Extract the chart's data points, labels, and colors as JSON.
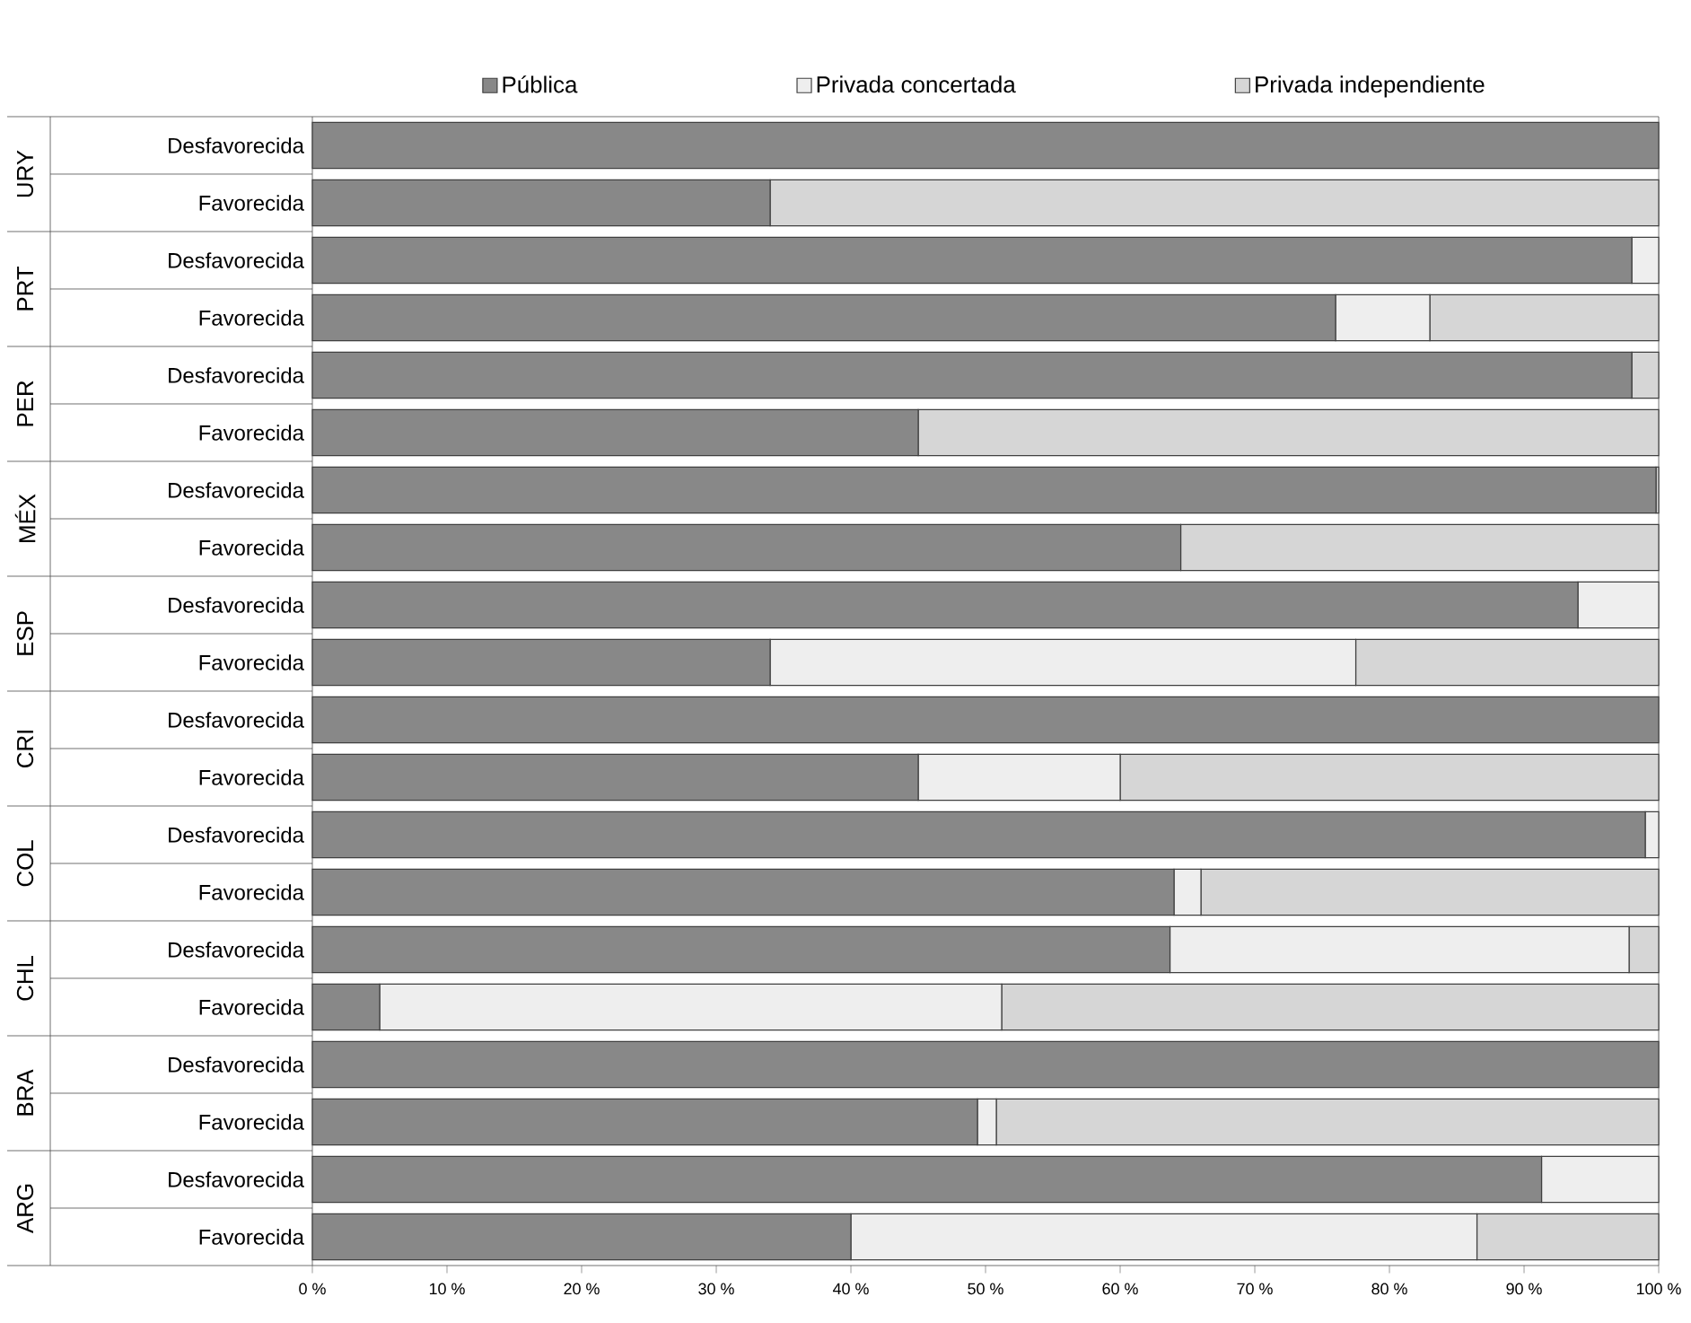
{
  "chart_data": {
    "type": "bar",
    "orientation": "horizontal",
    "stacked": true,
    "categories": [
      "Desfavorecida",
      "Favorecida",
      "Desfavorecida",
      "Favorecida",
      "Desfavorecida",
      "Favorecida",
      "Desfavorecida",
      "Favorecida",
      "Desfavorecida",
      "Favorecida",
      "Desfavorecida",
      "Favorecida",
      "Desfavorecida",
      "Favorecida",
      "Desfavorecida",
      "Favorecida",
      "Desfavorecida",
      "Favorecida",
      "Desfavorecida",
      "Favorecida"
    ],
    "series": [
      {
        "name": "Pública",
        "color": "#888888",
        "values": [
          100,
          34,
          98,
          76,
          98,
          45,
          99.8,
          64.5,
          94,
          34,
          100,
          45,
          99,
          64,
          63.7,
          5,
          100,
          49.4,
          91.3,
          40
        ]
      },
      {
        "name": "Privada concertada",
        "color": "#eeeeee",
        "values": [
          0,
          0,
          2,
          7,
          0,
          0,
          0,
          0,
          6,
          43.5,
          0,
          15,
          1,
          2,
          34.1,
          46.2,
          0,
          1.4,
          8.7,
          46.5
        ]
      },
      {
        "name": "Privada independiente",
        "color": "#d6d6d6",
        "values": [
          0,
          66,
          0,
          17,
          2,
          55,
          0.2,
          35.5,
          0,
          22.5,
          0,
          40,
          0,
          34,
          2.2,
          48.8,
          0,
          49.2,
          0,
          13.5
        ]
      }
    ],
    "xlim": [
      0,
      100
    ],
    "xticks": [
      {
        "value": 0,
        "label": "0 %"
      },
      {
        "value": 10,
        "label": "10 %"
      },
      {
        "value": 20,
        "label": "20 %"
      },
      {
        "value": 30,
        "label": "30 %"
      },
      {
        "value": 40,
        "label": "40 %"
      },
      {
        "value": 50,
        "label": "50 %"
      },
      {
        "value": 60,
        "label": "60 %"
      },
      {
        "value": 70,
        "label": "70 %"
      },
      {
        "value": 80,
        "label": "80 %"
      },
      {
        "value": 90,
        "label": "90 %"
      },
      {
        "value": 100,
        "label": "100 %"
      }
    ],
    "legend": "top",
    "annotations": [
      "URY",
      "PRT",
      "PER",
      "MÉX",
      "ESP",
      "CRI",
      "COL",
      "CHL",
      "BRA",
      "ARG"
    ]
  }
}
